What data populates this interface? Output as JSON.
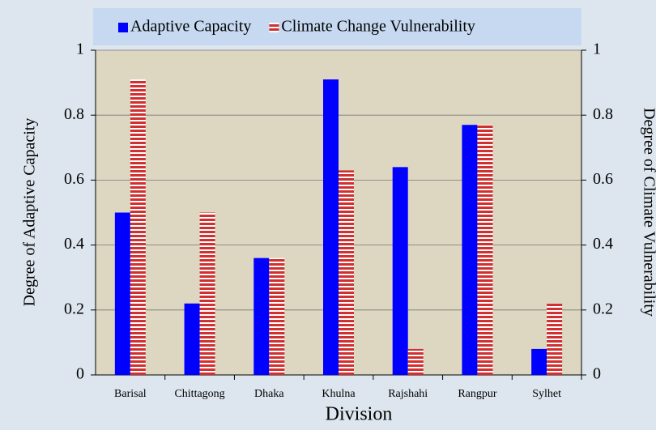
{
  "chart_data": {
    "type": "bar",
    "x_label": "Division",
    "y_label": "Degree of Adaptive Capacity",
    "y2_label": "Degree of Climate Vulnerability",
    "categories": [
      "Barisal",
      "Chittagong",
      "Dhaka",
      "Khulna",
      "Rajshahi",
      "Rangpur",
      "Sylhet"
    ],
    "series": [
      {
        "name": "Adaptive Capacity",
        "color": "#0000ff",
        "values": [
          0.5,
          0.22,
          0.36,
          0.91,
          0.64,
          0.77,
          0.08
        ]
      },
      {
        "name": "Climate Change Vulnerability",
        "color": "#d03030",
        "axis": "y2",
        "values": [
          0.91,
          0.5,
          0.36,
          0.63,
          0.08,
          0.77,
          0.22
        ]
      }
    ],
    "ylim": [
      0,
      1
    ],
    "yticks": [
      0,
      0.2,
      0.4,
      0.6,
      0.8,
      1
    ],
    "y2lim": [
      0,
      1
    ],
    "y2ticks": [
      0,
      0.2,
      0.4,
      0.6,
      0.8,
      1
    ],
    "grid": true,
    "legend": "top"
  }
}
